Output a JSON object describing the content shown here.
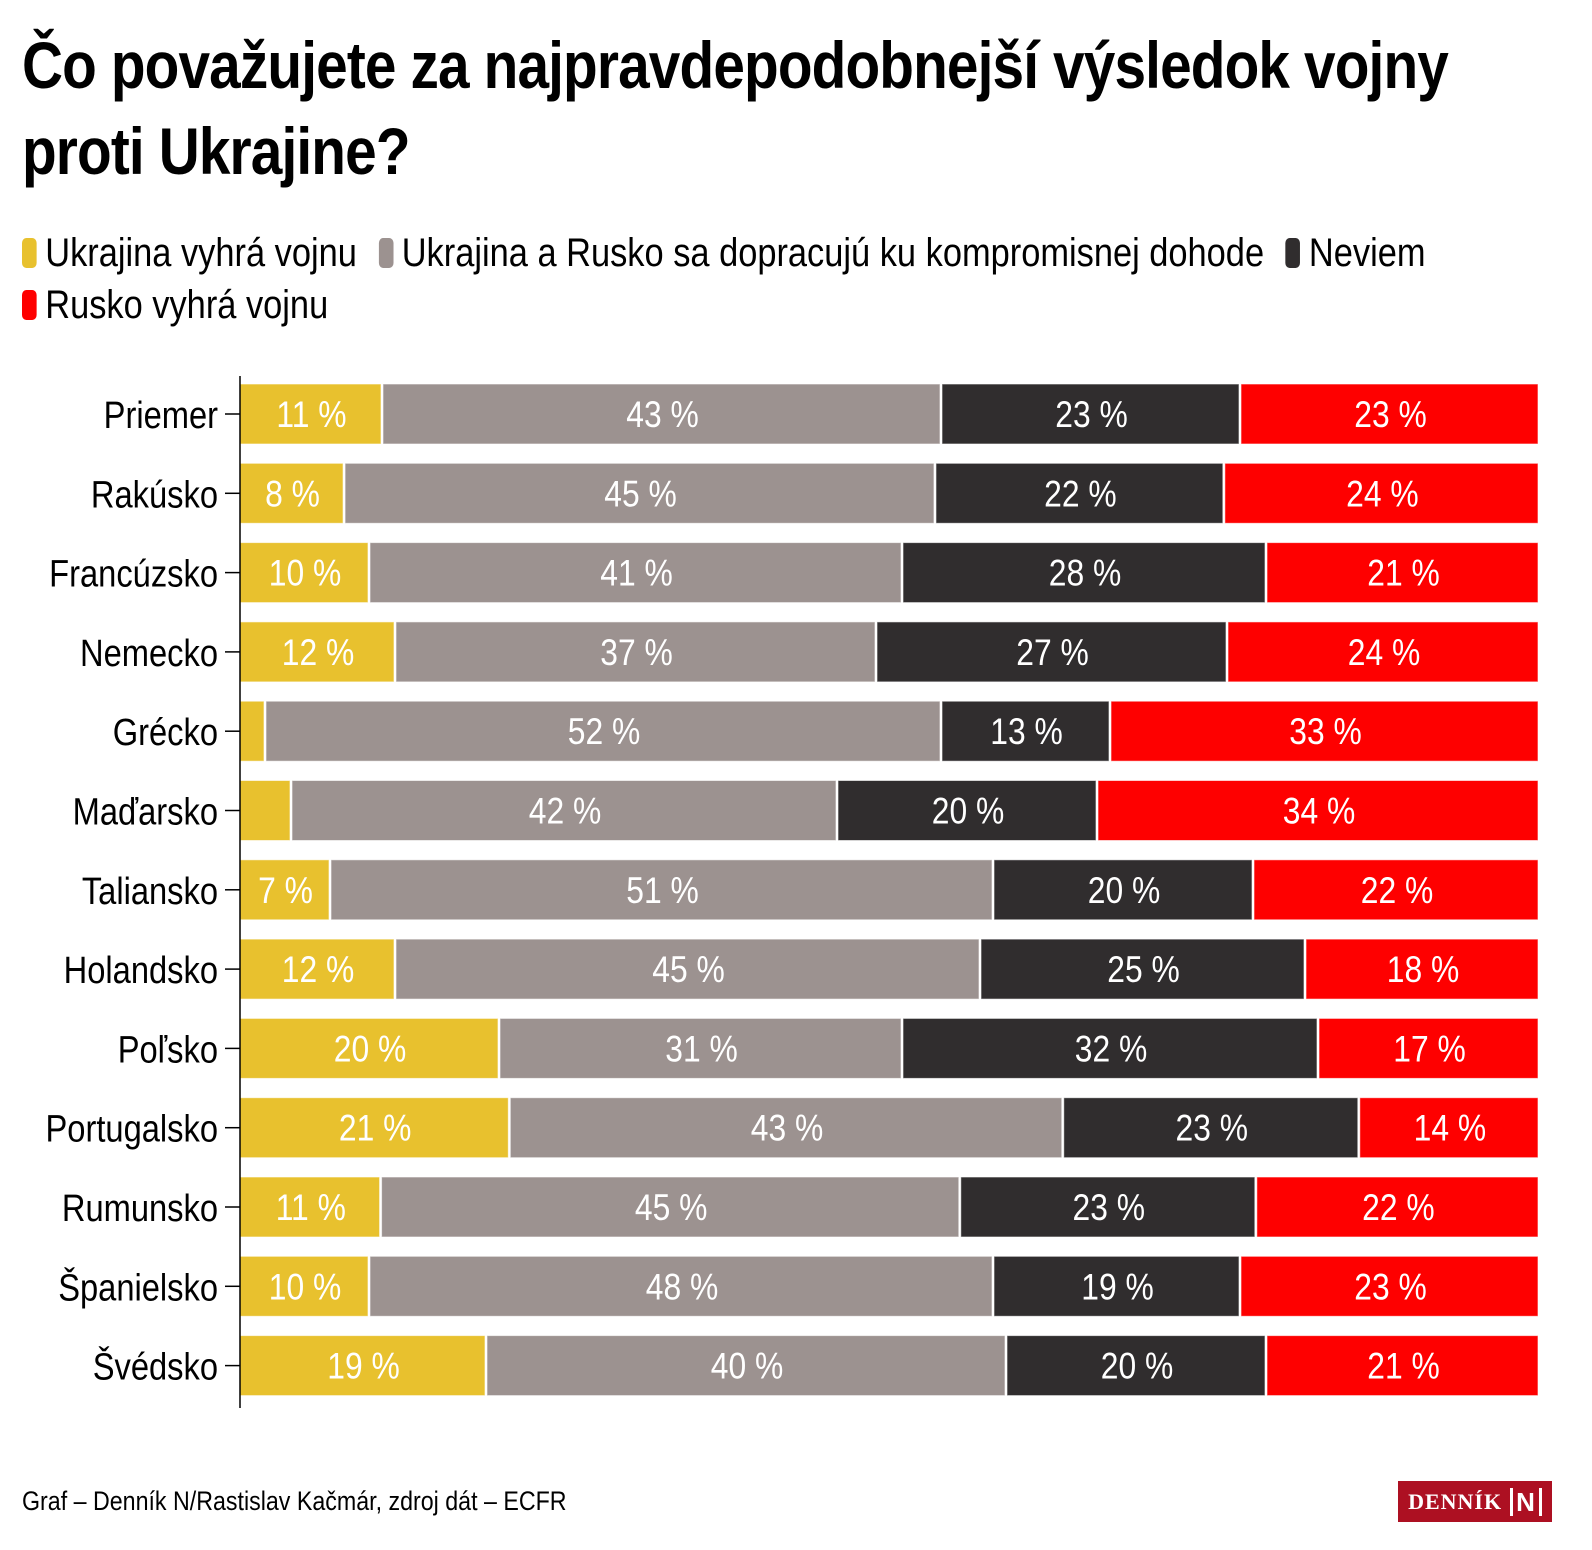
{
  "title": "Čo považujete za najpravdepodobnejší výsledok vojny proti Ukrajine?",
  "legend": [
    {
      "label": "Ukrajina vyhrá vojnu",
      "color": "#e8c12e"
    },
    {
      "label": "Ukrajina a Rusko sa dopracujú ku kompromisnej dohode",
      "color": "#9c9290"
    },
    {
      "label": "Neviem",
      "color": "#302d2e"
    },
    {
      "label": "Rusko vyhrá vojnu",
      "color": "#fe0000"
    }
  ],
  "footer": {
    "credit": "Graf – Denník N/Rastislav Kačmár, zdroj dát – ECFR",
    "logo_text": "DENNÍK",
    "logo_mark": "N"
  },
  "chart_data": {
    "type": "bar",
    "orientation": "horizontal",
    "stacked": true,
    "normalized": true,
    "title": "Čo považujete za najpravdepodobnejší výsledok vojny proti Ukrajine?",
    "xlabel": "",
    "ylabel": "",
    "xlim": [
      0,
      100
    ],
    "grid": false,
    "legend_position": "top-left",
    "value_suffix": " %",
    "categories": [
      "Priemer",
      "Rakúsko",
      "Francúzsko",
      "Nemecko",
      "Grécko",
      "Maďarsko",
      "Taliansko",
      "Holandsko",
      "Poľsko",
      "Portugalsko",
      "Rumunsko",
      "Španielsko",
      "Švédsko"
    ],
    "series": [
      {
        "name": "Ukrajina vyhrá vojnu",
        "color": "#e8c12e",
        "values": [
          11,
          8,
          10,
          12,
          2,
          4,
          7,
          12,
          20,
          21,
          11,
          10,
          19
        ],
        "labels": [
          "11 %",
          "8 %",
          "10 %",
          "12 %",
          "",
          "",
          "7 %",
          "12 %",
          "20 %",
          "21 %",
          "11 %",
          "10 %",
          "19 %"
        ]
      },
      {
        "name": "Ukrajina a Rusko sa dopracujú ku kompromisnej dohode",
        "color": "#9c9290",
        "values": [
          43,
          45,
          41,
          37,
          52,
          42,
          51,
          45,
          31,
          43,
          45,
          48,
          40
        ],
        "labels": [
          "43 %",
          "45 %",
          "41 %",
          "37 %",
          "52 %",
          "42 %",
          "51 %",
          "45 %",
          "31 %",
          "43 %",
          "45 %",
          "48 %",
          "40 %"
        ]
      },
      {
        "name": "Neviem",
        "color": "#302d2e",
        "values": [
          23,
          22,
          28,
          27,
          13,
          20,
          20,
          25,
          32,
          23,
          23,
          19,
          20
        ],
        "labels": [
          "23 %",
          "22 %",
          "28 %",
          "27 %",
          "13 %",
          "20 %",
          "20 %",
          "25 %",
          "32 %",
          "23 %",
          "23 %",
          "19 %",
          "20 %"
        ]
      },
      {
        "name": "Rusko vyhrá vojnu",
        "color": "#fe0000",
        "values": [
          23,
          24,
          21,
          24,
          33,
          34,
          22,
          18,
          17,
          14,
          22,
          23,
          21
        ],
        "labels": [
          "23 %",
          "24 %",
          "21 %",
          "24 %",
          "33 %",
          "34 %",
          "22 %",
          "18 %",
          "17 %",
          "14 %",
          "22 %",
          "23 %",
          "21 %"
        ]
      }
    ]
  }
}
